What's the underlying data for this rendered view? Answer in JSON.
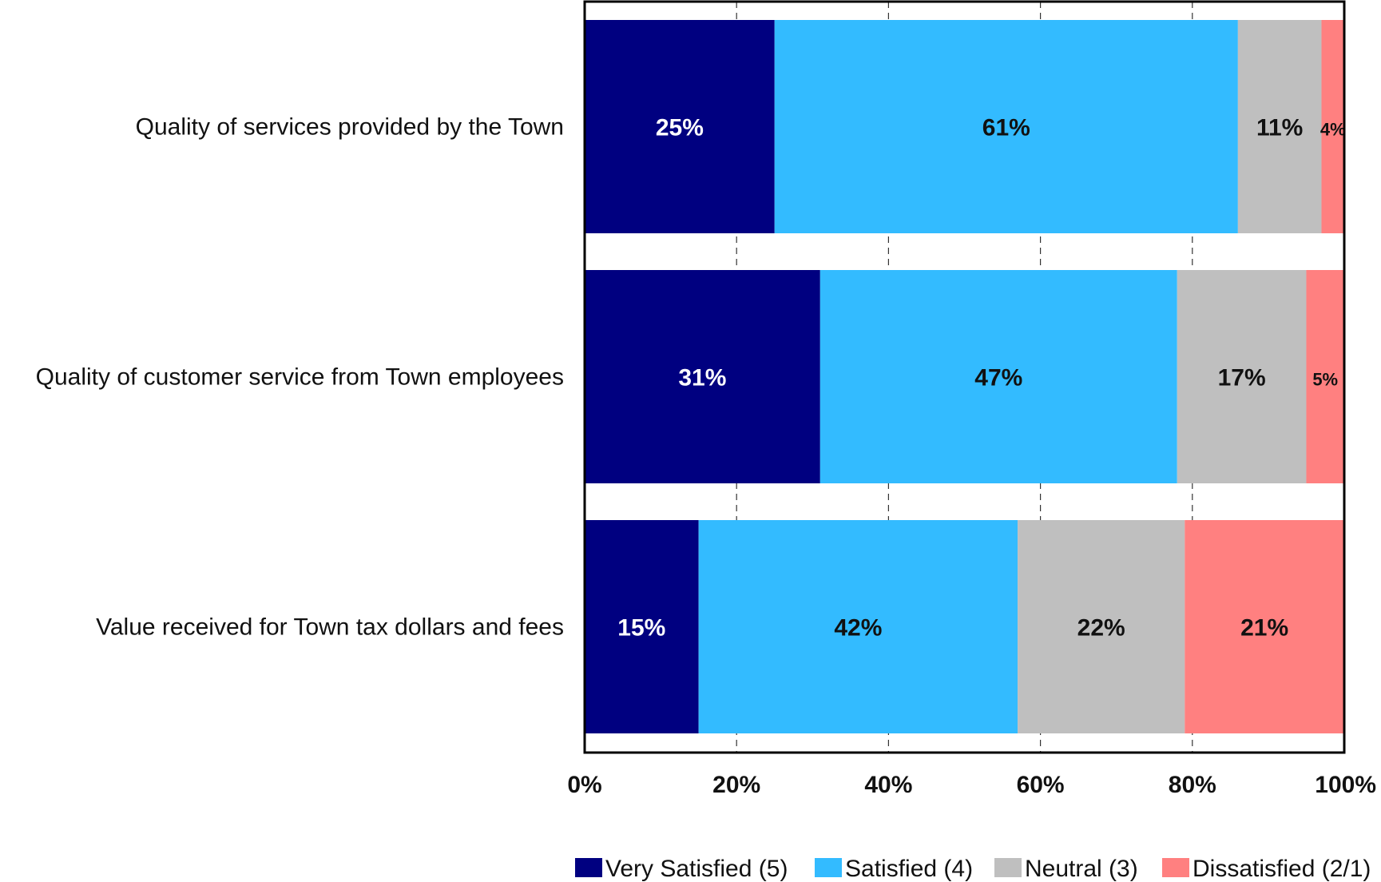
{
  "chart_data": {
    "type": "bar",
    "orientation": "horizontal",
    "stacked": true,
    "categories": [
      "Quality of services provided by the Town",
      "Quality of customer service from Town employees",
      "Value received for Town tax dollars and fees"
    ],
    "series": [
      {
        "name": "Very Satisfied (5)",
        "color": "#000080",
        "label_color": "#ffffff",
        "values": [
          25,
          31,
          15
        ]
      },
      {
        "name": "Satisfied (4)",
        "color": "#33bbff",
        "label_color": "#111111",
        "values": [
          61,
          47,
          42
        ]
      },
      {
        "name": "Neutral (3)",
        "color": "#bfbfbf",
        "label_color": "#111111",
        "values": [
          11,
          17,
          22
        ]
      },
      {
        "name": "Dissatisfied (2/1)",
        "color": "#ff8080",
        "label_color": "#111111",
        "values": [
          4,
          5,
          21
        ]
      }
    ],
    "data_labels": [
      [
        "25%",
        "61%",
        "11%",
        "4%"
      ],
      [
        "31%",
        "47%",
        "17%",
        "5%"
      ],
      [
        "15%",
        "42%",
        "22%",
        "21%"
      ]
    ],
    "xlim": [
      0,
      100
    ],
    "xticks": [
      "0%",
      "20%",
      "40%",
      "60%",
      "80%",
      "100%"
    ],
    "grid": "vertical dashed",
    "legend_position": "bottom",
    "title": "",
    "xlabel": "",
    "ylabel": ""
  }
}
